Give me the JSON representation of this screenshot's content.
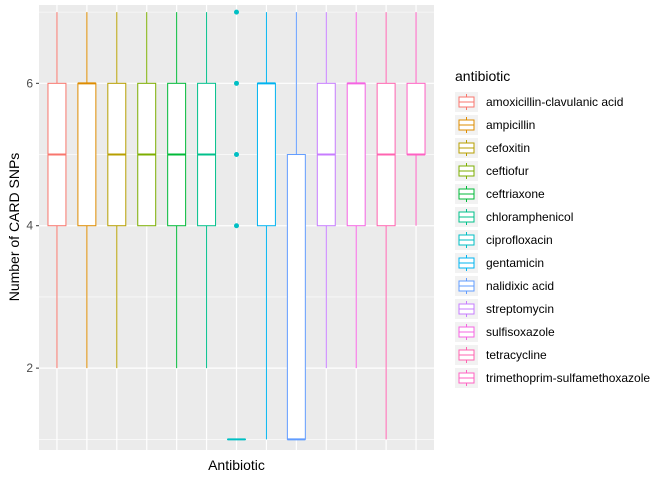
{
  "chart_data": {
    "type": "boxplot",
    "xlabel": "Antibiotic",
    "ylabel": "Number of CARD SNPs",
    "ylim": [
      0.85,
      7.1
    ],
    "yticks": [
      2,
      4,
      6
    ],
    "grid": true,
    "legend_position": "right",
    "legend_title": "antibiotic",
    "series": [
      {
        "name": "amoxicillin-clavulanic acid",
        "color": "#F8766D",
        "min": 2,
        "q1": 4,
        "median": 5,
        "q3": 6,
        "max": 7,
        "outliers": []
      },
      {
        "name": "ampicillin",
        "color": "#DE8C00",
        "min": 2,
        "q1": 4,
        "median": 6,
        "q3": 6,
        "max": 7,
        "outliers": []
      },
      {
        "name": "cefoxitin",
        "color": "#B79F00",
        "min": 2,
        "q1": 4,
        "median": 5,
        "q3": 6,
        "max": 7,
        "outliers": []
      },
      {
        "name": "ceftiofur",
        "color": "#7CAE00",
        "min": 4,
        "q1": 4,
        "median": 5,
        "q3": 6,
        "max": 7,
        "outliers": []
      },
      {
        "name": "ceftriaxone",
        "color": "#00BA38",
        "min": 2,
        "q1": 4,
        "median": 5,
        "q3": 6,
        "max": 7,
        "outliers": []
      },
      {
        "name": "chloramphenicol",
        "color": "#00C08B",
        "min": 2,
        "q1": 4,
        "median": 5,
        "q3": 6,
        "max": 7,
        "outliers": []
      },
      {
        "name": "ciprofloxacin",
        "color": "#00BFC4",
        "min": 1,
        "q1": 1,
        "median": 1,
        "q3": 1,
        "max": 1,
        "outliers": [
          4,
          5,
          6,
          7
        ]
      },
      {
        "name": "gentamicin",
        "color": "#00B4F0",
        "min": 1,
        "q1": 4,
        "median": 6,
        "q3": 6,
        "max": 7,
        "outliers": []
      },
      {
        "name": "nalidixic acid",
        "color": "#619CFF",
        "min": 1,
        "q1": 1,
        "median": 1,
        "q3": 5,
        "max": 7,
        "outliers": []
      },
      {
        "name": "streptomycin",
        "color": "#C77CFF",
        "min": 2,
        "q1": 4,
        "median": 5,
        "q3": 6,
        "max": 7,
        "outliers": []
      },
      {
        "name": "sulfisoxazole",
        "color": "#F564E3",
        "min": 2,
        "q1": 4,
        "median": 6,
        "q3": 6,
        "max": 7,
        "outliers": []
      },
      {
        "name": "tetracycline",
        "color": "#FF64B0",
        "min": 1,
        "q1": 4,
        "median": 5,
        "q3": 6,
        "max": 7,
        "outliers": []
      },
      {
        "name": "trimethoprim-sulfamethoxazole",
        "color": "#FF61C3",
        "min": 4,
        "q1": 5,
        "median": 5,
        "q3": 6,
        "max": 7,
        "outliers": []
      }
    ]
  }
}
